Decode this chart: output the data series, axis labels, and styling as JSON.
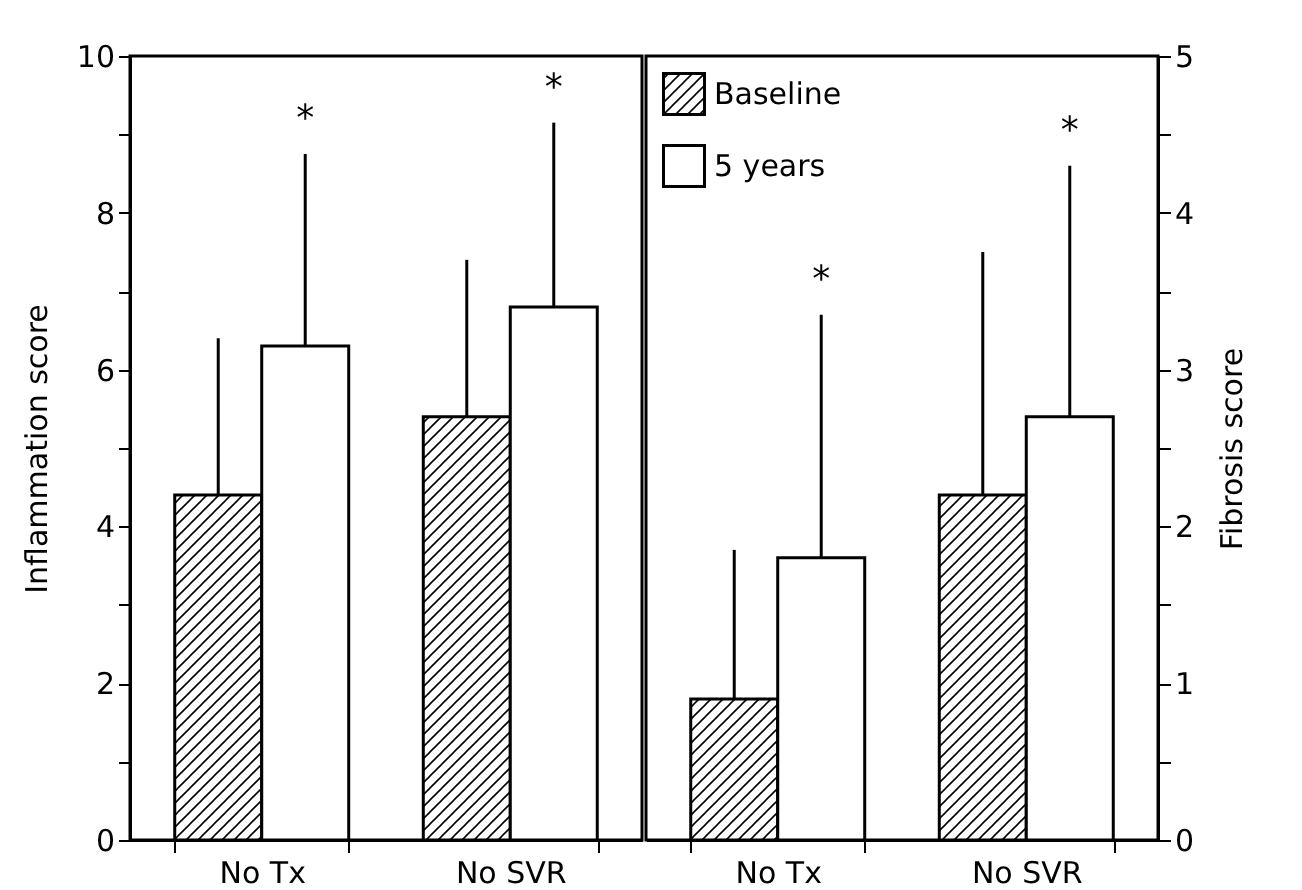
{
  "chart_data": [
    {
      "type": "bar",
      "categories": [
        "No Tx",
        "No SVR"
      ],
      "ylabel": "Inflammation score",
      "ylim": [
        0,
        10
      ],
      "yticks": [
        0,
        {
          "value": 1,
          "label": null
        },
        2,
        {
          "value": 3,
          "label": null
        },
        4,
        {
          "value": 5,
          "label": null
        },
        6,
        {
          "value": 7,
          "label": null
        },
        8,
        {
          "value": 9,
          "label": null
        },
        10
      ],
      "series": [
        {
          "color": "#000000",
          "values": [
            4.4,
            5.4
          ],
          "errors": [
            [
              4.4,
              6.4
            ],
            [
              5.4,
              7.4
            ]
          ]
        },
        {
          "color": "#ffffff",
          "values": [
            6.3,
            6.8
          ],
          "errors": [
            [
              6.3,
              8.75
            ],
            [
              6.8,
              9.15
            ]
          ]
        }
      ],
      "annotations": [
        "*",
        "*"
      ],
      "legend": false,
      "grid": false
    },
    {
      "type": "bar",
      "categories": [
        "No Tx",
        "No SVR"
      ],
      "y2label": "Fibrosis score",
      "y2lim": [
        0,
        5
      ],
      "y2ticks": [
        0,
        {
          "value": 0.5,
          "label": null
        },
        1,
        {
          "value": 1.5,
          "label": null
        },
        2,
        {
          "value": 2.5,
          "label": null
        },
        3,
        {
          "value": 3.5,
          "label": null
        },
        4,
        {
          "value": 4.5,
          "label": null
        },
        5
      ],
      "series": [
        {
          "name": "Baseline",
          "color": "#000000",
          "axis": "y2",
          "values": [
            0.9,
            2.2
          ],
          "errors": [
            [
              0.9,
              1.85
            ],
            [
              2.2,
              3.75
            ]
          ]
        },
        {
          "name": "5 years",
          "color": "#ffffff",
          "axis": "y2",
          "values": [
            1.8,
            2.7
          ],
          "errors": [
            [
              1.8,
              3.35
            ],
            [
              2.7,
              4.3
            ]
          ]
        }
      ],
      "annotations": [
        "*",
        "*"
      ],
      "legend": "top left",
      "grid": false
    }
  ]
}
